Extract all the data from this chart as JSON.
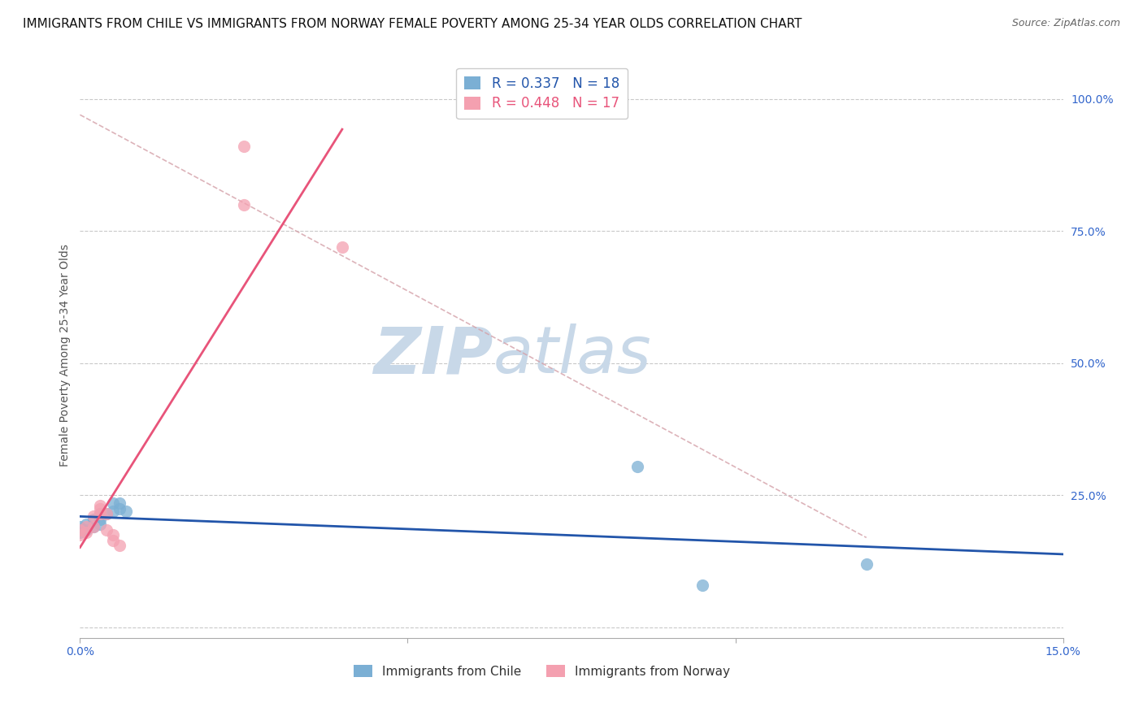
{
  "title": "IMMIGRANTS FROM CHILE VS IMMIGRANTS FROM NORWAY FEMALE POVERTY AMONG 25-34 YEAR OLDS CORRELATION CHART",
  "source": "Source: ZipAtlas.com",
  "ylabel": "Female Poverty Among 25-34 Year Olds",
  "xlim": [
    0.0,
    0.15
  ],
  "ylim": [
    0.0,
    1.0
  ],
  "chile_color": "#7bafd4",
  "norway_color": "#f4a0b0",
  "chile_line_color": "#2255aa",
  "norway_line_color": "#e8547a",
  "diagonal_color": "#d4a0a8",
  "chile_R": 0.337,
  "chile_N": 18,
  "norway_R": 0.448,
  "norway_N": 17,
  "background_color": "#ffffff",
  "watermark": "ZIPatlas",
  "watermark_color": "#c8d8e8",
  "grid_color": "#bbbbbb",
  "chile_x": [
    0.0,
    0.0,
    0.001,
    0.001,
    0.002,
    0.002,
    0.003,
    0.003,
    0.003,
    0.004,
    0.005,
    0.005,
    0.006,
    0.006,
    0.007,
    0.085,
    0.095,
    0.12
  ],
  "chile_y": [
    0.19,
    0.18,
    0.195,
    0.185,
    0.205,
    0.19,
    0.205,
    0.195,
    0.215,
    0.215,
    0.235,
    0.22,
    0.235,
    0.225,
    0.22,
    0.305,
    0.08,
    0.12
  ],
  "norway_x": [
    0.0,
    0.0,
    0.001,
    0.001,
    0.002,
    0.002,
    0.003,
    0.003,
    0.003,
    0.004,
    0.004,
    0.005,
    0.005,
    0.006,
    0.025,
    0.025,
    0.04
  ],
  "norway_y": [
    0.185,
    0.175,
    0.19,
    0.18,
    0.21,
    0.19,
    0.215,
    0.225,
    0.23,
    0.215,
    0.185,
    0.175,
    0.165,
    0.155,
    0.8,
    0.91,
    0.72
  ],
  "legend_chile_label": "Immigrants from Chile",
  "legend_norway_label": "Immigrants from Norway",
  "title_fontsize": 11,
  "axis_label_fontsize": 10,
  "tick_fontsize": 10,
  "tick_color": "#3366cc",
  "legend_fontsize": 12
}
